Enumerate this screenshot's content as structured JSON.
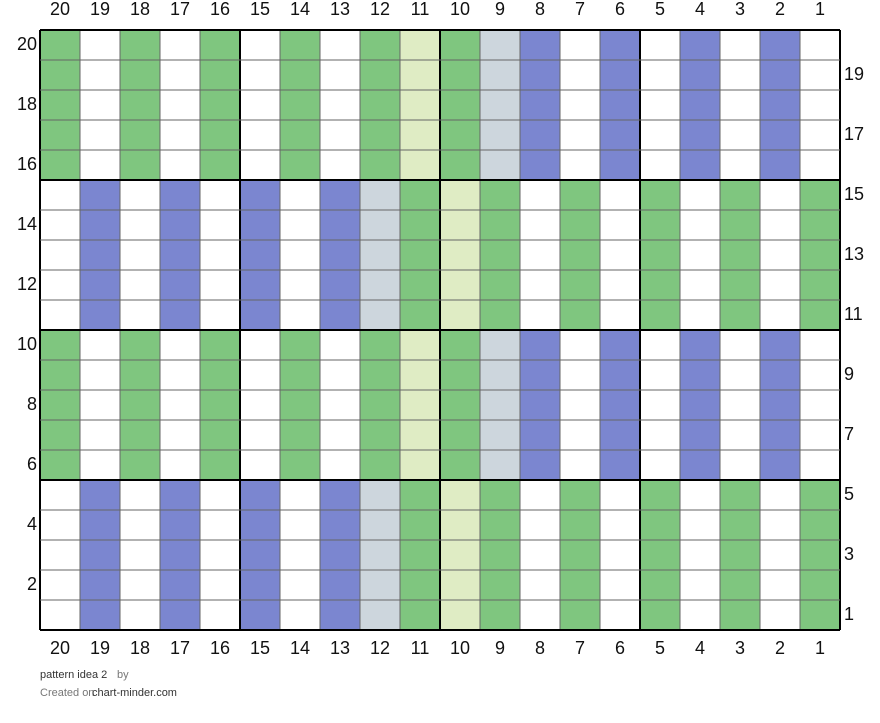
{
  "columns": [
    20,
    19,
    18,
    17,
    16,
    15,
    14,
    13,
    12,
    11,
    10,
    9,
    8,
    7,
    6,
    5,
    4,
    3,
    2,
    1
  ],
  "rows": [
    {
      "number": 20,
      "cells": [
        "#7fc67f",
        "#ffffff",
        "#7fc67f",
        "#ffffff",
        "#7fc67f",
        "#ffffff",
        "#7fc67f",
        "#ffffff",
        "#7fc67f",
        "#dfecc4",
        "#7fc67f",
        "#cdd6dd",
        "#7b86d0",
        "#ffffff",
        "#7b86d0",
        "#ffffff",
        "#7b86d0",
        "#ffffff",
        "#7b86d0",
        "#ffffff"
      ]
    },
    {
      "number": 19,
      "cells": [
        "#7fc67f",
        "#ffffff",
        "#7fc67f",
        "#ffffff",
        "#7fc67f",
        "#ffffff",
        "#7fc67f",
        "#ffffff",
        "#7fc67f",
        "#dfecc4",
        "#7fc67f",
        "#cdd6dd",
        "#7b86d0",
        "#ffffff",
        "#7b86d0",
        "#ffffff",
        "#7b86d0",
        "#ffffff",
        "#7b86d0",
        "#ffffff"
      ]
    },
    {
      "number": 18,
      "cells": [
        "#7fc67f",
        "#ffffff",
        "#7fc67f",
        "#ffffff",
        "#7fc67f",
        "#ffffff",
        "#7fc67f",
        "#ffffff",
        "#7fc67f",
        "#dfecc4",
        "#7fc67f",
        "#cdd6dd",
        "#7b86d0",
        "#ffffff",
        "#7b86d0",
        "#ffffff",
        "#7b86d0",
        "#ffffff",
        "#7b86d0",
        "#ffffff"
      ]
    },
    {
      "number": 17,
      "cells": [
        "#7fc67f",
        "#ffffff",
        "#7fc67f",
        "#ffffff",
        "#7fc67f",
        "#ffffff",
        "#7fc67f",
        "#ffffff",
        "#7fc67f",
        "#dfecc4",
        "#7fc67f",
        "#cdd6dd",
        "#7b86d0",
        "#ffffff",
        "#7b86d0",
        "#ffffff",
        "#7b86d0",
        "#ffffff",
        "#7b86d0",
        "#ffffff"
      ]
    },
    {
      "number": 16,
      "cells": [
        "#7fc67f",
        "#ffffff",
        "#7fc67f",
        "#ffffff",
        "#7fc67f",
        "#ffffff",
        "#7fc67f",
        "#ffffff",
        "#7fc67f",
        "#dfecc4",
        "#7fc67f",
        "#cdd6dd",
        "#7b86d0",
        "#ffffff",
        "#7b86d0",
        "#ffffff",
        "#7b86d0",
        "#ffffff",
        "#7b86d0",
        "#ffffff"
      ]
    },
    {
      "number": 15,
      "cells": [
        "#ffffff",
        "#7b86d0",
        "#ffffff",
        "#7b86d0",
        "#ffffff",
        "#7b86d0",
        "#ffffff",
        "#7b86d0",
        "#cdd6dd",
        "#7fc67f",
        "#dfecc4",
        "#7fc67f",
        "#ffffff",
        "#7fc67f",
        "#ffffff",
        "#7fc67f",
        "#ffffff",
        "#7fc67f",
        "#ffffff",
        "#7fc67f"
      ]
    },
    {
      "number": 14,
      "cells": [
        "#ffffff",
        "#7b86d0",
        "#ffffff",
        "#7b86d0",
        "#ffffff",
        "#7b86d0",
        "#ffffff",
        "#7b86d0",
        "#cdd6dd",
        "#7fc67f",
        "#dfecc4",
        "#7fc67f",
        "#ffffff",
        "#7fc67f",
        "#ffffff",
        "#7fc67f",
        "#ffffff",
        "#7fc67f",
        "#ffffff",
        "#7fc67f"
      ]
    },
    {
      "number": 13,
      "cells": [
        "#ffffff",
        "#7b86d0",
        "#ffffff",
        "#7b86d0",
        "#ffffff",
        "#7b86d0",
        "#ffffff",
        "#7b86d0",
        "#cdd6dd",
        "#7fc67f",
        "#dfecc4",
        "#7fc67f",
        "#ffffff",
        "#7fc67f",
        "#ffffff",
        "#7fc67f",
        "#ffffff",
        "#7fc67f",
        "#ffffff",
        "#7fc67f"
      ]
    },
    {
      "number": 12,
      "cells": [
        "#ffffff",
        "#7b86d0",
        "#ffffff",
        "#7b86d0",
        "#ffffff",
        "#7b86d0",
        "#ffffff",
        "#7b86d0",
        "#cdd6dd",
        "#7fc67f",
        "#dfecc4",
        "#7fc67f",
        "#ffffff",
        "#7fc67f",
        "#ffffff",
        "#7fc67f",
        "#ffffff",
        "#7fc67f",
        "#ffffff",
        "#7fc67f"
      ]
    },
    {
      "number": 11,
      "cells": [
        "#ffffff",
        "#7b86d0",
        "#ffffff",
        "#7b86d0",
        "#ffffff",
        "#7b86d0",
        "#ffffff",
        "#7b86d0",
        "#cdd6dd",
        "#7fc67f",
        "#dfecc4",
        "#7fc67f",
        "#ffffff",
        "#7fc67f",
        "#ffffff",
        "#7fc67f",
        "#ffffff",
        "#7fc67f",
        "#ffffff",
        "#7fc67f"
      ]
    },
    {
      "number": 10,
      "cells": [
        "#7fc67f",
        "#ffffff",
        "#7fc67f",
        "#ffffff",
        "#7fc67f",
        "#ffffff",
        "#7fc67f",
        "#ffffff",
        "#7fc67f",
        "#dfecc4",
        "#7fc67f",
        "#cdd6dd",
        "#7b86d0",
        "#ffffff",
        "#7b86d0",
        "#ffffff",
        "#7b86d0",
        "#ffffff",
        "#7b86d0",
        "#ffffff"
      ]
    },
    {
      "number": 9,
      "cells": [
        "#7fc67f",
        "#ffffff",
        "#7fc67f",
        "#ffffff",
        "#7fc67f",
        "#ffffff",
        "#7fc67f",
        "#ffffff",
        "#7fc67f",
        "#dfecc4",
        "#7fc67f",
        "#cdd6dd",
        "#7b86d0",
        "#ffffff",
        "#7b86d0",
        "#ffffff",
        "#7b86d0",
        "#ffffff",
        "#7b86d0",
        "#ffffff"
      ]
    },
    {
      "number": 8,
      "cells": [
        "#7fc67f",
        "#ffffff",
        "#7fc67f",
        "#ffffff",
        "#7fc67f",
        "#ffffff",
        "#7fc67f",
        "#ffffff",
        "#7fc67f",
        "#dfecc4",
        "#7fc67f",
        "#cdd6dd",
        "#7b86d0",
        "#ffffff",
        "#7b86d0",
        "#ffffff",
        "#7b86d0",
        "#ffffff",
        "#7b86d0",
        "#ffffff"
      ]
    },
    {
      "number": 7,
      "cells": [
        "#7fc67f",
        "#ffffff",
        "#7fc67f",
        "#ffffff",
        "#7fc67f",
        "#ffffff",
        "#7fc67f",
        "#ffffff",
        "#7fc67f",
        "#dfecc4",
        "#7fc67f",
        "#cdd6dd",
        "#7b86d0",
        "#ffffff",
        "#7b86d0",
        "#ffffff",
        "#7b86d0",
        "#ffffff",
        "#7b86d0",
        "#ffffff"
      ]
    },
    {
      "number": 6,
      "cells": [
        "#7fc67f",
        "#ffffff",
        "#7fc67f",
        "#ffffff",
        "#7fc67f",
        "#ffffff",
        "#7fc67f",
        "#ffffff",
        "#7fc67f",
        "#dfecc4",
        "#7fc67f",
        "#cdd6dd",
        "#7b86d0",
        "#ffffff",
        "#7b86d0",
        "#ffffff",
        "#7b86d0",
        "#ffffff",
        "#7b86d0",
        "#ffffff"
      ]
    },
    {
      "number": 5,
      "cells": [
        "#ffffff",
        "#7b86d0",
        "#ffffff",
        "#7b86d0",
        "#ffffff",
        "#7b86d0",
        "#ffffff",
        "#7b86d0",
        "#cdd6dd",
        "#7fc67f",
        "#dfecc4",
        "#7fc67f",
        "#ffffff",
        "#7fc67f",
        "#ffffff",
        "#7fc67f",
        "#ffffff",
        "#7fc67f",
        "#ffffff",
        "#7fc67f"
      ]
    },
    {
      "number": 4,
      "cells": [
        "#ffffff",
        "#7b86d0",
        "#ffffff",
        "#7b86d0",
        "#ffffff",
        "#7b86d0",
        "#ffffff",
        "#7b86d0",
        "#cdd6dd",
        "#7fc67f",
        "#dfecc4",
        "#7fc67f",
        "#ffffff",
        "#7fc67f",
        "#ffffff",
        "#7fc67f",
        "#ffffff",
        "#7fc67f",
        "#ffffff",
        "#7fc67f"
      ]
    },
    {
      "number": 3,
      "cells": [
        "#ffffff",
        "#7b86d0",
        "#ffffff",
        "#7b86d0",
        "#ffffff",
        "#7b86d0",
        "#ffffff",
        "#7b86d0",
        "#cdd6dd",
        "#7fc67f",
        "#dfecc4",
        "#7fc67f",
        "#ffffff",
        "#7fc67f",
        "#ffffff",
        "#7fc67f",
        "#ffffff",
        "#7fc67f",
        "#ffffff",
        "#7fc67f"
      ]
    },
    {
      "number": 2,
      "cells": [
        "#ffffff",
        "#7b86d0",
        "#ffffff",
        "#7b86d0",
        "#ffffff",
        "#7b86d0",
        "#ffffff",
        "#7b86d0",
        "#cdd6dd",
        "#7fc67f",
        "#dfecc4",
        "#7fc67f",
        "#ffffff",
        "#7fc67f",
        "#ffffff",
        "#7fc67f",
        "#ffffff",
        "#7fc67f",
        "#ffffff",
        "#7fc67f"
      ]
    },
    {
      "number": 1,
      "cells": [
        "#ffffff",
        "#7b86d0",
        "#ffffff",
        "#7b86d0",
        "#ffffff",
        "#7b86d0",
        "#ffffff",
        "#7b86d0",
        "#cdd6dd",
        "#7fc67f",
        "#dfecc4",
        "#7fc67f",
        "#ffffff",
        "#7fc67f",
        "#ffffff",
        "#7fc67f",
        "#ffffff",
        "#7fc67f",
        "#ffffff",
        "#7fc67f"
      ]
    }
  ],
  "footer": {
    "title": "pattern idea 2",
    "by": "by",
    "created": "Created on",
    "site": "chart-minder.com"
  }
}
